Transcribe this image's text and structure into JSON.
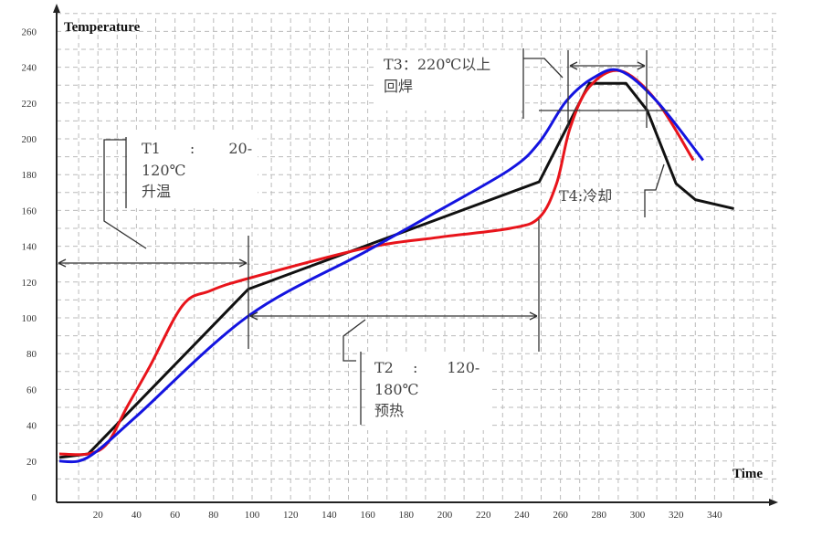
{
  "chart_data": {
    "type": "line",
    "title": "",
    "xlabel": "Time",
    "ylabel": "Temperature",
    "xlim": [
      0,
      350
    ],
    "ylim": [
      0,
      260
    ],
    "x_ticks": [
      20,
      40,
      60,
      80,
      100,
      120,
      140,
      160,
      180,
      200,
      220,
      240,
      260,
      280,
      300,
      320,
      340
    ],
    "y_ticks": [
      0,
      20,
      40,
      60,
      80,
      100,
      120,
      140,
      160,
      180,
      200,
      220,
      240,
      260
    ],
    "grid": true,
    "series": [
      {
        "color": "#111111",
        "points": [
          [
            0,
            22
          ],
          [
            15,
            24
          ],
          [
            98,
            116
          ],
          [
            249,
            176
          ],
          [
            275,
            231
          ],
          [
            294,
            231
          ],
          [
            305,
            216
          ],
          [
            320,
            175
          ],
          [
            330,
            166
          ],
          [
            350,
            161
          ]
        ]
      },
      {
        "color": "#e8141b",
        "points": [
          [
            0,
            24
          ],
          [
            15,
            24
          ],
          [
            25,
            30
          ],
          [
            35,
            50
          ],
          [
            47,
            73
          ],
          [
            64,
            107
          ],
          [
            78,
            115
          ],
          [
            98,
            122
          ],
          [
            159,
            139
          ],
          [
            197,
            145
          ],
          [
            234,
            150
          ],
          [
            249,
            156
          ],
          [
            258,
            175
          ],
          [
            265,
            206
          ],
          [
            275,
            229
          ],
          [
            291,
            238
          ],
          [
            310,
            221
          ],
          [
            329,
            188
          ]
        ]
      },
      {
        "color": "#1414e0",
        "points": [
          [
            0,
            20
          ],
          [
            10,
            20
          ],
          [
            20,
            26
          ],
          [
            40,
            45
          ],
          [
            98,
            101
          ],
          [
            159,
            137
          ],
          [
            197,
            160
          ],
          [
            234,
            183
          ],
          [
            249,
            198
          ],
          [
            263,
            221
          ],
          [
            277,
            234
          ],
          [
            291,
            238
          ],
          [
            310,
            221
          ],
          [
            334,
            188
          ]
        ]
      }
    ],
    "annotations": {
      "t1": [
        "T1　　:　　 20-",
        "120℃",
        "升温"
      ],
      "t2": [
        "T2　 :　　120-",
        "180℃",
        "预热"
      ],
      "t3": [
        "T3：220℃以上",
        "回焊"
      ],
      "t4": "T4:冷却"
    }
  }
}
